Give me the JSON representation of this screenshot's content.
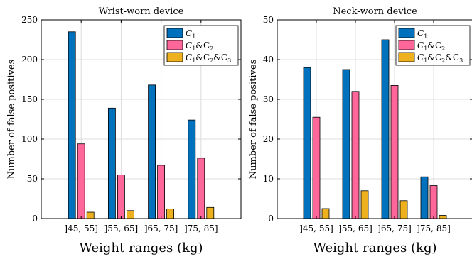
{
  "chart_data": [
    {
      "type": "bar",
      "title": "Wrist-worn device",
      "xlabel": "Weight ranges (kg)",
      "ylabel": "Number of false positives",
      "categories": [
        "]45, 55]",
        "]55, 65]",
        "]65, 75]",
        "]75, 85]"
      ],
      "ylim": [
        0,
        250
      ],
      "yticks": [
        0,
        50,
        100,
        150,
        200,
        250
      ],
      "grid": true,
      "legend_position": "top-right",
      "series": [
        {
          "name": "C1",
          "name_main": "C",
          "name_sub": "1",
          "color": "#0072bd",
          "values": [
            235,
            139,
            168,
            124
          ]
        },
        {
          "name": "C1&C2",
          "name_main": "C",
          "name_sub": "1",
          "name_rest": "&C",
          "name_sub2": "2",
          "color": "#ff6699",
          "values": [
            94,
            55,
            67,
            76
          ]
        },
        {
          "name": "C1&C2&C3",
          "name_main": "C",
          "name_sub": "1",
          "name_rest": "&C",
          "name_sub2": "2",
          "name_rest2": "&C",
          "name_sub3": "3",
          "color": "#edb120",
          "values": [
            8,
            10,
            12,
            14
          ]
        }
      ]
    },
    {
      "type": "bar",
      "title": "Neck-worn device",
      "xlabel": "Weight ranges (kg)",
      "ylabel": "Number of false positives",
      "categories": [
        "]45, 55]",
        "]55, 65]",
        "]65, 75]",
        "]75, 85]"
      ],
      "ylim": [
        0,
        50
      ],
      "yticks": [
        0,
        10,
        20,
        30,
        40,
        50
      ],
      "grid": true,
      "legend_position": "top-right",
      "series": [
        {
          "name": "C1",
          "name_main": "C",
          "name_sub": "1",
          "color": "#0072bd",
          "values": [
            38,
            37.5,
            45,
            10.5
          ]
        },
        {
          "name": "C1&C2",
          "name_main": "C",
          "name_sub": "1",
          "name_rest": "&C",
          "name_sub2": "2",
          "color": "#ff6699",
          "values": [
            25.5,
            32,
            33.5,
            8.3
          ]
        },
        {
          "name": "C1&C2&C3",
          "name_main": "C",
          "name_sub": "1",
          "name_rest": "&C",
          "name_sub2": "2",
          "name_rest2": "&C",
          "name_sub3": "3",
          "color": "#edb120",
          "values": [
            2.5,
            7,
            4.5,
            0.8
          ]
        }
      ]
    }
  ]
}
